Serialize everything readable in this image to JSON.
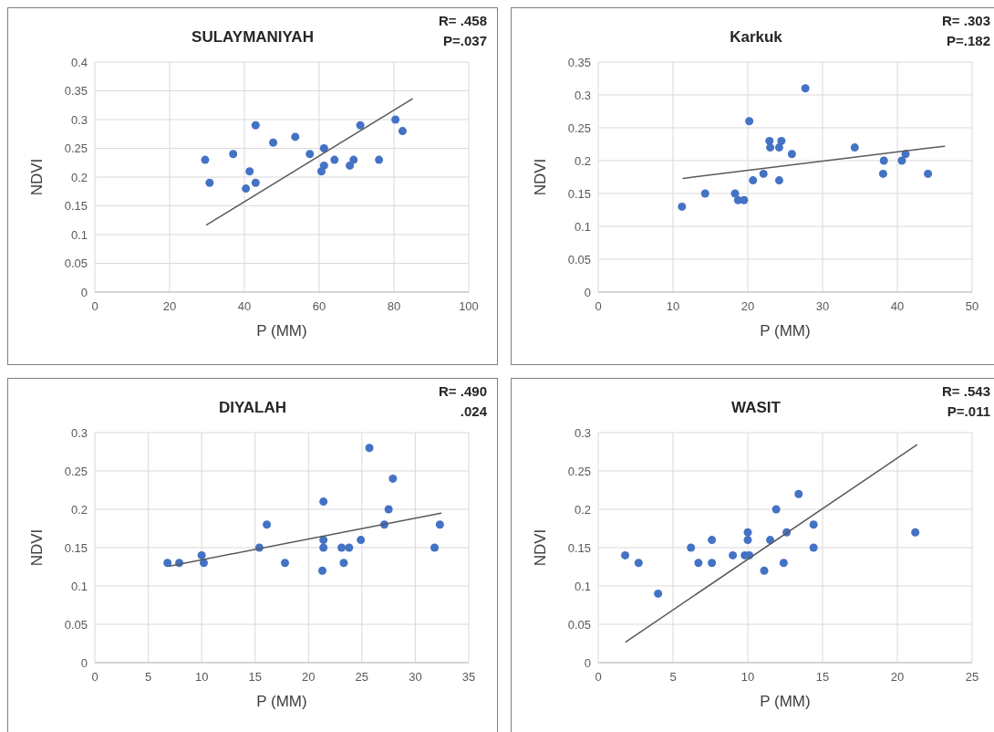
{
  "chart_data": [
    {
      "type": "scatter",
      "title": "SULAYMANIYAH",
      "xlabel": "P (MM)",
      "ylabel": "NDVI",
      "annotations": [
        "R= .458",
        "P=.037"
      ],
      "xlim": [
        0,
        100
      ],
      "xticks": [
        0,
        20,
        40,
        60,
        80,
        100
      ],
      "ylim": [
        0,
        0.4
      ],
      "yticks": [
        0,
        0.05,
        0.1,
        0.15,
        0.2,
        0.25,
        0.3,
        0.35,
        0.4
      ],
      "grid": true,
      "marker": "circle",
      "series": [
        {
          "color": "#4472c4",
          "x": [
            29.5,
            30.7,
            37.0,
            41.4,
            40.4,
            43.0,
            43.0,
            47.7,
            53.6,
            57.5,
            61.3,
            61.3,
            60.6,
            64.1,
            68.2,
            69.2,
            76.0,
            71.0,
            80.4,
            82.3
          ],
          "values": [
            0.23,
            0.19,
            0.24,
            0.21,
            0.18,
            0.19,
            0.29,
            0.26,
            0.27,
            0.24,
            0.25,
            0.22,
            0.21,
            0.23,
            0.22,
            0.23,
            0.23,
            0.29,
            0.3,
            0.28
          ]
        },
        {
          "type": "line",
          "marker": "none",
          "color": "#595959",
          "x": [
            29.9,
            84.9
          ],
          "values": [
            0.117,
            0.336
          ]
        }
      ]
    },
    {
      "type": "scatter",
      "title": "Karkuk",
      "xlabel": "P (MM)",
      "ylabel": "NDVI",
      "annotations": [
        "R= .303",
        "P=.182"
      ],
      "xlim": [
        0,
        50
      ],
      "xticks": [
        0,
        10,
        20,
        30,
        40,
        50
      ],
      "ylim": [
        0,
        0.35
      ],
      "yticks": [
        0,
        0.05,
        0.1,
        0.15,
        0.2,
        0.25,
        0.3,
        0.35
      ],
      "grid": true,
      "marker": "circle",
      "series": [
        {
          "color": "#4472c4",
          "x": [
            11.2,
            14.3,
            18.3,
            18.7,
            19.5,
            20.2,
            20.7,
            22.1,
            22.9,
            23.0,
            24.2,
            24.5,
            24.2,
            25.9,
            27.7,
            34.3,
            38.1,
            38.2,
            40.6,
            41.1,
            44.1
          ],
          "values": [
            0.13,
            0.15,
            0.15,
            0.14,
            0.14,
            0.26,
            0.17,
            0.18,
            0.23,
            0.22,
            0.22,
            0.23,
            0.17,
            0.21,
            0.31,
            0.22,
            0.18,
            0.2,
            0.2,
            0.21,
            0.18
          ]
        },
        {
          "type": "line",
          "marker": "none",
          "color": "#595959",
          "x": [
            11.35,
            46.3
          ],
          "values": [
            0.173,
            0.222
          ]
        }
      ]
    },
    {
      "type": "scatter",
      "title": "DIYALAH",
      "xlabel": "P (MM)",
      "ylabel": "NDVI",
      "annotations": [
        "R= .490",
        ".024"
      ],
      "xlim": [
        0,
        35
      ],
      "xticks": [
        0,
        5,
        10,
        15,
        20,
        25,
        30,
        35
      ],
      "ylim": [
        0,
        0.3
      ],
      "yticks": [
        0,
        0.05,
        0.1,
        0.15,
        0.2,
        0.25,
        0.3
      ],
      "grid": true,
      "marker": "circle",
      "series": [
        {
          "color": "#4472c4",
          "x": [
            6.8,
            7.9,
            10.0,
            10.2,
            15.4,
            16.1,
            17.8,
            21.4,
            21.4,
            21.4,
            21.3,
            23.1,
            23.3,
            23.8,
            24.9,
            25.7,
            27.1,
            27.5,
            27.9,
            31.8,
            32.3
          ],
          "values": [
            0.13,
            0.13,
            0.14,
            0.13,
            0.15,
            0.18,
            0.13,
            0.21,
            0.16,
            0.15,
            0.12,
            0.15,
            0.13,
            0.15,
            0.16,
            0.28,
            0.18,
            0.2,
            0.24,
            0.15,
            0.18
          ]
        },
        {
          "type": "line",
          "marker": "none",
          "color": "#595959",
          "x": [
            7.0,
            32.4
          ],
          "values": [
            0.126,
            0.195
          ]
        }
      ]
    },
    {
      "type": "scatter",
      "title": "WASIT",
      "xlabel": "P (MM)",
      "ylabel": "NDVI",
      "annotations": [
        "R= .543",
        "P=.011"
      ],
      "xlim": [
        0,
        25
      ],
      "xticks": [
        0,
        5,
        10,
        15,
        20,
        25
      ],
      "ylim": [
        0,
        0.3
      ],
      "yticks": [
        0,
        0.05,
        0.1,
        0.15,
        0.2,
        0.25,
        0.3
      ],
      "grid": true,
      "marker": "circle",
      "series": [
        {
          "color": "#4472c4",
          "x": [
            1.8,
            2.7,
            4.0,
            6.2,
            6.7,
            7.6,
            7.6,
            9.0,
            9.8,
            10.1,
            10.0,
            10.0,
            11.1,
            11.5,
            11.9,
            12.4,
            12.6,
            13.4,
            14.4,
            14.4,
            21.2
          ],
          "values": [
            0.14,
            0.13,
            0.09,
            0.15,
            0.13,
            0.16,
            0.13,
            0.14,
            0.14,
            0.14,
            0.17,
            0.16,
            0.12,
            0.16,
            0.2,
            0.13,
            0.17,
            0.22,
            0.18,
            0.15,
            0.17
          ]
        },
        {
          "type": "line",
          "marker": "none",
          "color": "#595959",
          "x": [
            1.84,
            21.3
          ],
          "values": [
            0.027,
            0.284
          ]
        }
      ]
    }
  ]
}
